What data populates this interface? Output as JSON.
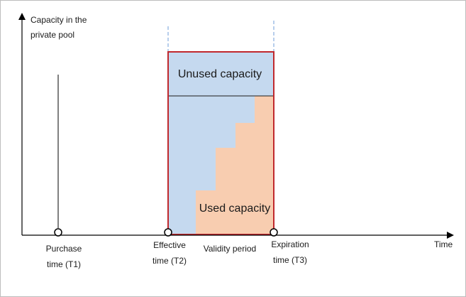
{
  "axes": {
    "y_label_line1": "Capacity in the",
    "y_label_line2": "private pool",
    "x_label": "Time"
  },
  "regions": {
    "unused": "Unused capacity",
    "used": "Used capacity"
  },
  "markers": {
    "t1_line1": "Purchase",
    "t1_line2": "time (T1)",
    "t2_line1": "Effective",
    "t2_line2": "time (T2)",
    "t3_line1": "Expiration",
    "t3_line2": "time (T3)",
    "validity": "Validity period"
  },
  "colors": {
    "unused_fill": "#c5d9ef",
    "used_fill": "#f8cdb0",
    "box_border": "#c0282d",
    "axis": "#000000",
    "guide": "#6f9ed8"
  }
}
